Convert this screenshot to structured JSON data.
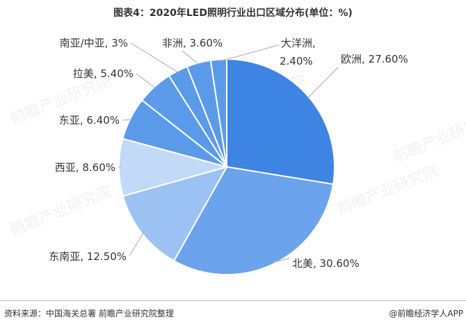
{
  "title": "图表4：2020年LED照明行业出口区域分布(单位：%)",
  "source": "资料来源：中国海关总署 前瞻产业研究院整理",
  "app_credit": "@前瞻经济学人APP",
  "watermark": "前瞻产业研究院",
  "chart_data": {
    "type": "pie",
    "title": "图表4：2020年LED照明行业出口区域分布(单位：%)",
    "unit": "%",
    "slices": [
      {
        "name": "欧洲",
        "value": 27.6,
        "label": "欧洲, 27.60%",
        "color": "#3e84e2"
      },
      {
        "name": "北美",
        "value": 30.6,
        "label": "北美, 30.60%",
        "color": "#6ba3ec"
      },
      {
        "name": "东南亚",
        "value": 12.5,
        "label": "东南亚, 12.50%",
        "color": "#9cc2f3"
      },
      {
        "name": "西亚",
        "value": 8.6,
        "label": "西亚, 8.60%",
        "color": "#c2daf8"
      },
      {
        "name": "东亚",
        "value": 6.4,
        "label": "东亚, 6.40%",
        "color": "#5b9ae9"
      },
      {
        "name": "拉美",
        "value": 5.4,
        "label": "拉美, 5.40%",
        "color": "#5b9ae9"
      },
      {
        "name": "南亚/中亚",
        "value": 3.0,
        "label": "南亚/中亚, 3%",
        "color": "#5b9ae9"
      },
      {
        "name": "非洲",
        "value": 3.6,
        "label": "非洲, 3.60%",
        "color": "#5b9ae9"
      },
      {
        "name": "大洋洲",
        "value": 2.4,
        "label": "大洋洲, 2.40%",
        "label_lines": [
          "大洋洲,",
          "2.40%"
        ],
        "color": "#5b9ae9"
      }
    ]
  }
}
